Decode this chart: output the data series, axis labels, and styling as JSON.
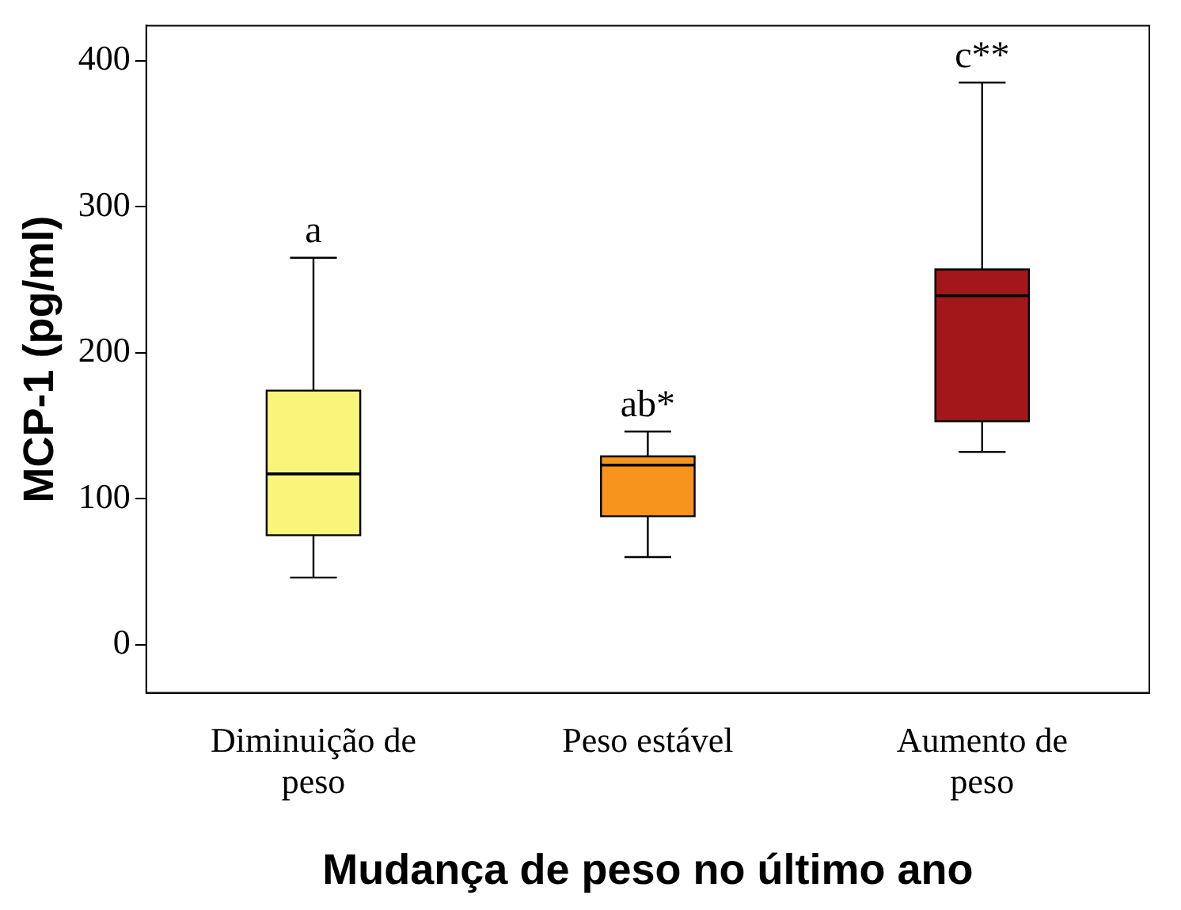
{
  "chart_data": {
    "type": "box",
    "xlabel": "Mudança de peso no último ano",
    "ylabel": "MCP-1 (pg/ml)",
    "categories": [
      "Diminuição de peso",
      "Peso estável",
      "Aumento de peso"
    ],
    "colors": [
      "#f8f57a",
      "#f7941d",
      "#a3161a"
    ],
    "boxes": [
      {
        "low": 46,
        "q1": 75,
        "median": 117,
        "q3": 174,
        "high": 265
      },
      {
        "low": 60,
        "q1": 88,
        "median": 123,
        "q3": 129,
        "high": 146
      },
      {
        "low": 132,
        "q1": 153,
        "median": 239,
        "q3": 257,
        "high": 385
      }
    ],
    "ylim": [
      -33,
      424
    ],
    "yticks": [
      0,
      100,
      200,
      300,
      400
    ],
    "annotations": [
      {
        "text": "a",
        "x": "Diminuição de peso",
        "y": 265
      },
      {
        "text": "ab*",
        "x": "Peso estável",
        "y": 146
      },
      {
        "text": "c**",
        "x": "Aumento de peso",
        "y": 385
      }
    ]
  }
}
